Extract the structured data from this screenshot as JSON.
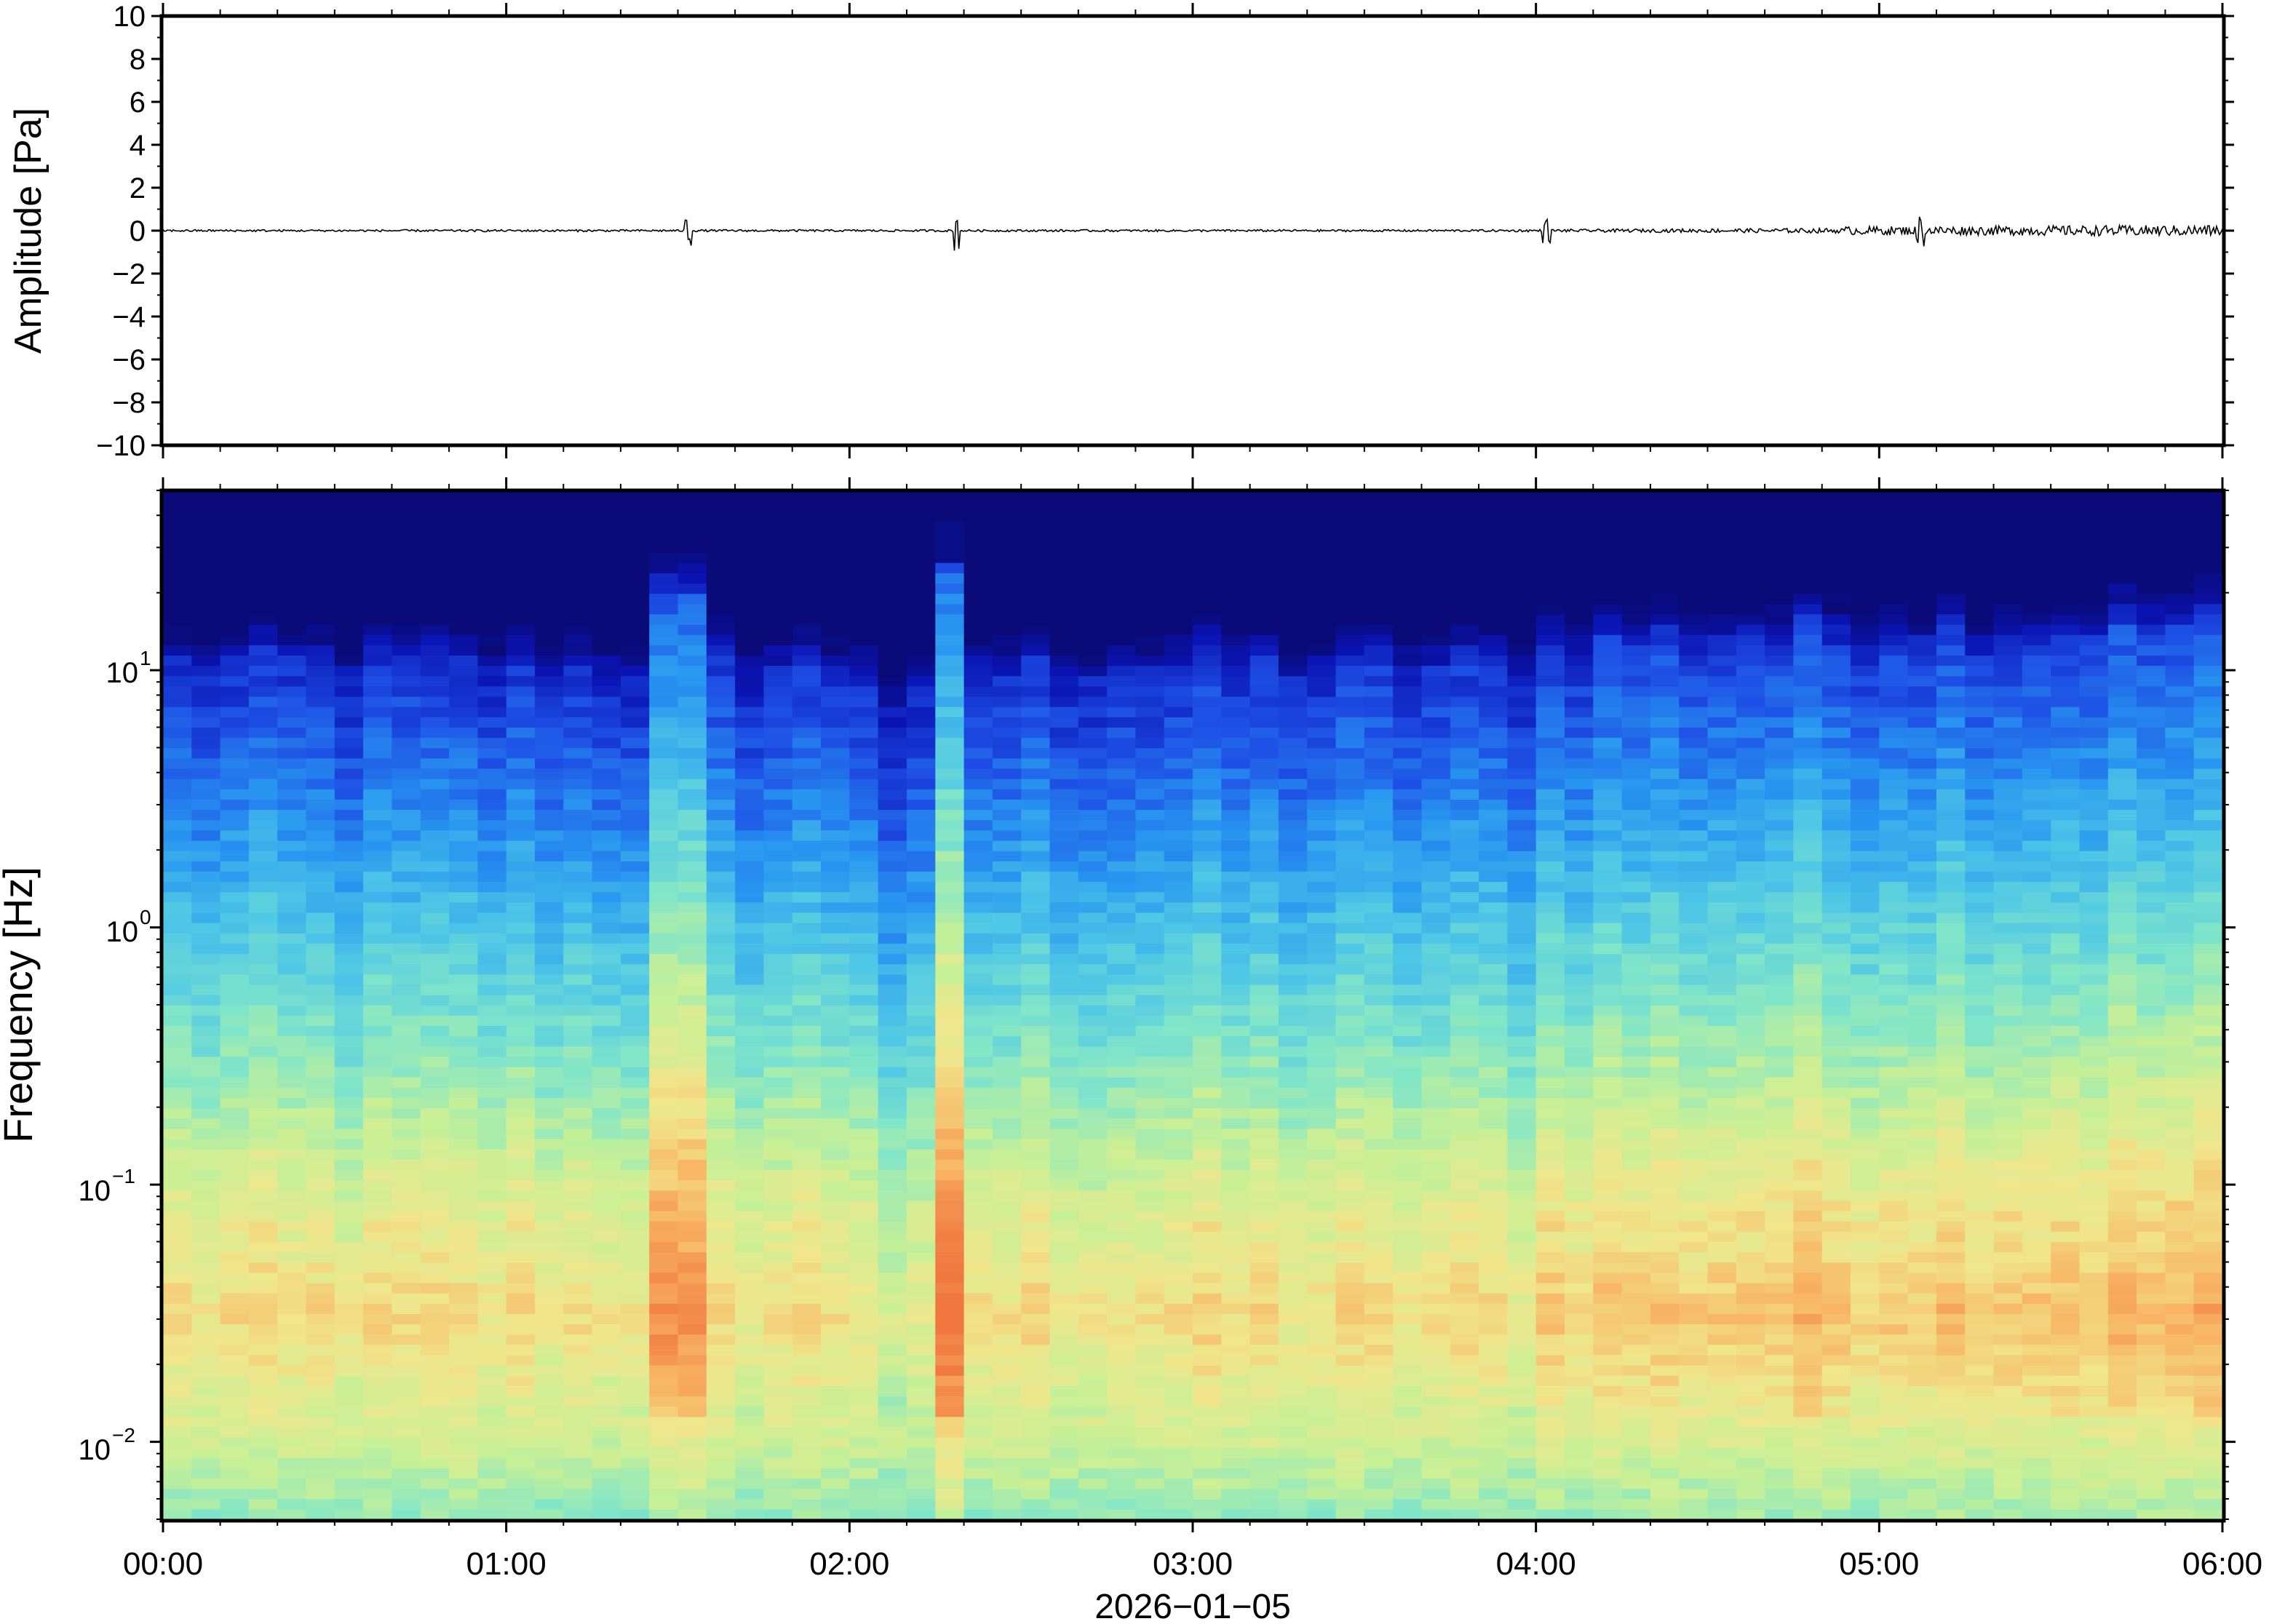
{
  "colors": {
    "frame": "#000000",
    "trace": "#000000",
    "colormap": [
      "#0a0a78",
      "#0a14b4",
      "#1e50e6",
      "#2896f0",
      "#50c8e6",
      "#82e6c8",
      "#c8f096",
      "#f0e68c",
      "#f8b464",
      "#f07840"
    ]
  },
  "chart_data": [
    {
      "type": "line",
      "name": "waveform",
      "ylabel": "Amplitude [Pa]",
      "ylim": [
        -10,
        10
      ],
      "yticks": [
        10,
        8,
        6,
        4,
        2,
        0,
        -2,
        -4,
        -6,
        -8,
        -10
      ],
      "ytick_labels": [
        "10",
        "8",
        "6",
        "4",
        "2",
        "0",
        "−2",
        "−4",
        "−6",
        "−8",
        "−10"
      ],
      "x_range_hours": [
        0,
        6
      ],
      "grid": false,
      "bursts": [
        {
          "t": 1.53,
          "peak": 0.8
        },
        {
          "t": 2.31,
          "peak": 1.0
        },
        {
          "t": 4.03,
          "peak": 0.6
        },
        {
          "t": 5.12,
          "peak": 0.8
        }
      ]
    },
    {
      "type": "heatmap",
      "name": "spectrogram",
      "ylabel": "Frequency [Hz]",
      "yscale": "log",
      "ylim_hz": [
        0.005,
        50
      ],
      "ytick_labels": [
        {
          "base": "10",
          "exp": "1"
        },
        {
          "base": "10",
          "exp": "0"
        },
        {
          "base": "10",
          "exp": "−1"
        },
        {
          "base": "10",
          "exp": "−2"
        }
      ],
      "xlabel": "2026−01−05",
      "xtick_labels": [
        "00:00",
        "01:00",
        "02:00",
        "03:00",
        "04:00",
        "05:00",
        "06:00"
      ],
      "x_range_hours": [
        0,
        6
      ],
      "grid": false,
      "colorbar": false
    }
  ]
}
